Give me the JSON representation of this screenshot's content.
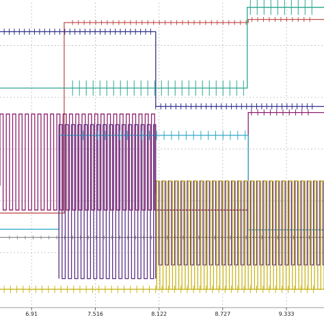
{
  "chart_data": {
    "type": "line",
    "title": "",
    "xlabel": "",
    "ylabel": "",
    "xlim": [
      6.61,
      9.69
    ],
    "x_ticks": [
      6.91,
      7.516,
      8.122,
      8.727,
      9.333
    ],
    "x_tick_labels": [
      "6.91",
      "7.516",
      "8.122",
      "8.727",
      "9.333"
    ],
    "grid": true,
    "colors": {
      "red": "#c0504d",
      "navy": "#2f2f8a",
      "teal": "#2aa58e",
      "magenta": "#8a1f6b",
      "cyan": "#2ea7c7",
      "gray": "#8c8c8c",
      "olive": "#c8b417",
      "purple": "#5a2d82",
      "grid": "#b9b9b9"
    },
    "series": [
      {
        "color": "red",
        "kind": "step",
        "points": [
          [
            6.61,
            0.31
          ],
          [
            7.22,
            0.31
          ],
          [
            7.22,
            0.935
          ],
          [
            8.97,
            0.935
          ],
          [
            8.97,
            0.945
          ],
          [
            9.69,
            0.945
          ]
        ],
        "spikes": {
          "from": 7.3,
          "to": 9.6,
          "every": 0.055,
          "amp": 0.008
        }
      },
      {
        "color": "navy",
        "kind": "step",
        "points": [
          [
            6.61,
            0.905
          ],
          [
            8.09,
            0.905
          ],
          [
            8.09,
            0.66
          ],
          [
            9.69,
            0.66
          ]
        ],
        "spikes": {
          "from": 6.65,
          "to": 9.6,
          "every": 0.048,
          "amp": 0.01
        }
      },
      {
        "color": "teal",
        "kind": "step",
        "points": [
          [
            6.61,
            0.72
          ],
          [
            8.96,
            0.72
          ],
          [
            8.96,
            0.985
          ],
          [
            9.69,
            0.985
          ]
        ],
        "spikes": {
          "from": 7.3,
          "to": 9.6,
          "every": 0.065,
          "amp": 0.025
        }
      },
      {
        "color": "magenta",
        "kind": "pulse",
        "from": 6.61,
        "to": 8.09,
        "period": 0.06,
        "duty": 0.5,
        "hi": 0.635,
        "lo": 0.32,
        "base": 0.4
      },
      {
        "color": "magenta",
        "kind": "step",
        "points": [
          [
            8.09,
            0.32
          ],
          [
            8.97,
            0.32
          ],
          [
            8.97,
            0.64
          ],
          [
            9.69,
            0.64
          ]
        ],
        "spikes": {
          "from": 9.0,
          "to": 9.6,
          "every": 0.06,
          "amp": 0.01
        }
      },
      {
        "color": "cyan",
        "kind": "step",
        "points": [
          [
            6.61,
            0.257
          ],
          [
            7.17,
            0.257
          ],
          [
            7.17,
            0.565
          ],
          [
            8.97,
            0.565
          ],
          [
            8.97,
            0.255
          ],
          [
            9.69,
            0.255
          ]
        ],
        "spikes": {
          "from": 7.4,
          "to": 8.95,
          "every": 0.07,
          "amp": 0.015
        }
      },
      {
        "color": "gray",
        "kind": "step",
        "points": [
          [
            6.61,
            0.23
          ],
          [
            9.69,
            0.23
          ]
        ],
        "spikes": {
          "from": 6.7,
          "to": 9.6,
          "every": 0.075,
          "amp": 0.006
        }
      },
      {
        "color": "purple",
        "kind": "pulse",
        "from": 7.17,
        "to": 8.09,
        "period": 0.06,
        "duty": 0.5,
        "hi": 0.6,
        "lo": 0.095,
        "base": 0.095
      },
      {
        "color": "purple",
        "kind": "pulse",
        "from": 8.09,
        "to": 9.69,
        "period": 0.06,
        "duty": 0.5,
        "hi": 0.415,
        "lo": 0.14,
        "base": 0.375
      },
      {
        "color": "olive",
        "kind": "step",
        "points": [
          [
            6.61,
            0.06
          ],
          [
            9.69,
            0.06
          ]
        ],
        "spikes": {
          "from": 6.65,
          "to": 9.6,
          "every": 0.06,
          "amp": 0.012
        }
      },
      {
        "color": "olive",
        "kind": "pulse",
        "from": 8.1,
        "to": 9.69,
        "period": 0.06,
        "duty": 0.5,
        "hi": 0.415,
        "lo": 0.06,
        "base": 0.06
      }
    ]
  }
}
